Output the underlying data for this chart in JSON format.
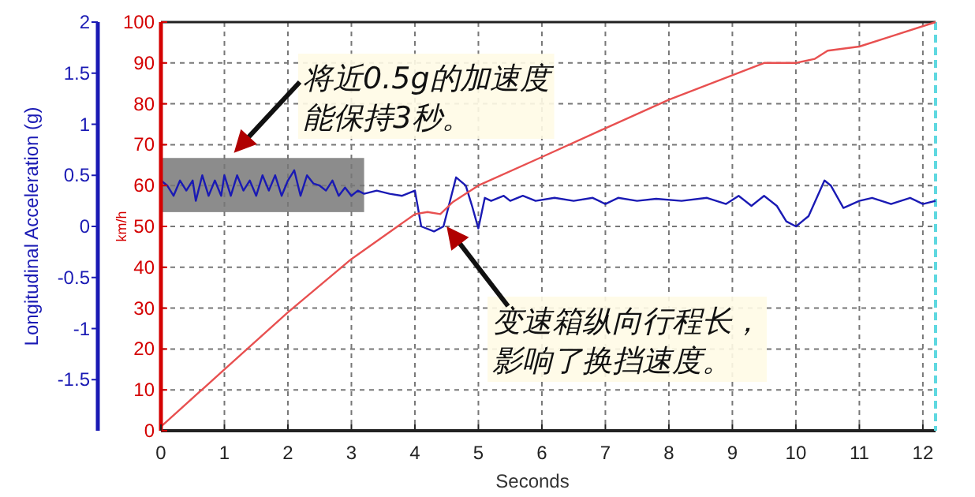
{
  "chart_data": {
    "type": "line",
    "xlabel": "Seconds",
    "ylabel": "Longitudinal Acceleration (g)",
    "y2label": "km/h",
    "xlim": [
      0,
      12.2
    ],
    "xticks": [
      0,
      1,
      2,
      3,
      4,
      5,
      6,
      7,
      8,
      9,
      10,
      11,
      12
    ],
    "ylim": [
      -2,
      2
    ],
    "yticks": [
      -1.5,
      -1,
      -0.5,
      0,
      0.5,
      1,
      1.5,
      2
    ],
    "y2lim": [
      0,
      100
    ],
    "y2ticks": [
      0,
      10,
      20,
      30,
      40,
      50,
      60,
      70,
      80,
      90,
      100
    ],
    "grid": true,
    "marker": "none",
    "line_style": "solid",
    "bands": [
      {
        "axis": "x",
        "from": 0,
        "to": 3.2,
        "color": "#8c8c8c"
      }
    ],
    "series": [
      {
        "color": "#1a1ab4",
        "axis": "y",
        "x": [
          0,
          0.1,
          0.2,
          0.3,
          0.4,
          0.5,
          0.55,
          0.65,
          0.75,
          0.85,
          0.95,
          1.0,
          1.1,
          1.2,
          1.3,
          1.4,
          1.5,
          1.6,
          1.7,
          1.8,
          1.9,
          2.0,
          2.1,
          2.2,
          2.3,
          2.4,
          2.5,
          2.6,
          2.7,
          2.8,
          2.9,
          3.0,
          3.1,
          3.2,
          3.4,
          3.6,
          3.8,
          4.0,
          4.1,
          4.3,
          4.45,
          4.65,
          4.8,
          4.9,
          5.0,
          5.1,
          5.2,
          5.4,
          5.5,
          5.7,
          5.9,
          6.2,
          6.5,
          6.8,
          7.0,
          7.2,
          7.5,
          7.8,
          8.2,
          8.6,
          8.9,
          9.1,
          9.3,
          9.5,
          9.7,
          9.85,
          10.0,
          10.2,
          10.45,
          10.55,
          10.75,
          11.0,
          11.2,
          11.5,
          11.8,
          12.0,
          12.2
        ],
        "values": [
          0.45,
          0.4,
          0.3,
          0.45,
          0.35,
          0.45,
          0.25,
          0.5,
          0.3,
          0.45,
          0.3,
          0.5,
          0.3,
          0.5,
          0.35,
          0.45,
          0.3,
          0.5,
          0.35,
          0.5,
          0.3,
          0.45,
          0.55,
          0.3,
          0.5,
          0.42,
          0.4,
          0.35,
          0.45,
          0.3,
          0.38,
          0.3,
          0.35,
          0.32,
          0.35,
          0.32,
          0.3,
          0.35,
          0.0,
          -0.05,
          0.0,
          0.48,
          0.4,
          0.2,
          -0.02,
          0.28,
          0.25,
          0.3,
          0.25,
          0.3,
          0.25,
          0.28,
          0.25,
          0.28,
          0.22,
          0.28,
          0.25,
          0.27,
          0.25,
          0.28,
          0.22,
          0.3,
          0.2,
          0.3,
          0.2,
          0.05,
          0.0,
          0.1,
          0.45,
          0.4,
          0.18,
          0.25,
          0.28,
          0.22,
          0.28,
          0.22,
          0.25
        ]
      },
      {
        "color": "#e85050",
        "axis": "y2",
        "x": [
          0,
          1,
          2,
          3,
          4,
          4.2,
          4.4,
          4.6,
          5,
          6,
          7,
          8,
          9,
          9.5,
          10,
          10.3,
          10.5,
          11,
          11.5,
          12.2
        ],
        "values": [
          1,
          15,
          29,
          42,
          53,
          53.5,
          53,
          56,
          60,
          67,
          74,
          81,
          87,
          90,
          90,
          91,
          93,
          94,
          96.5,
          100
        ]
      }
    ],
    "annotations": [
      {
        "text": "将近0.5g的加速度能保持3秒。",
        "x": 1.15,
        "y": 0.72
      },
      {
        "text": "变速箱纵向行程长，影响了换挡速度。",
        "x": 4.5,
        "y": 0
      }
    ]
  }
}
